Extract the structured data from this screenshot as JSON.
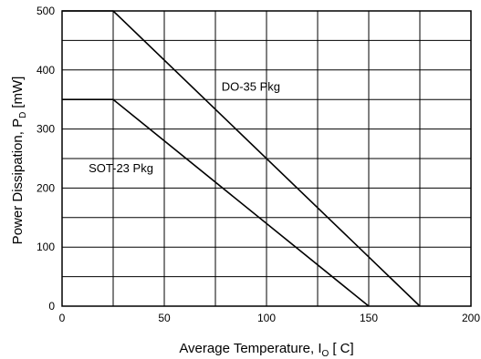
{
  "chart_data": {
    "type": "line",
    "xlabel": "Average Temperature, I",
    "xlabel_sub": "O",
    "xlabel_unit": "[ C]",
    "ylabel": "Power Dissipation, P",
    "ylabel_sub": "D",
    "ylabel_unit": "[mW]",
    "xlim": [
      0,
      200
    ],
    "ylim": [
      0,
      500
    ],
    "x_major_ticks": [
      0,
      50,
      100,
      150,
      200
    ],
    "y_major_ticks": [
      0,
      100,
      200,
      300,
      400,
      500
    ],
    "x_grid": [
      0,
      25,
      50,
      75,
      100,
      125,
      150,
      175,
      200
    ],
    "y_grid": [
      0,
      50,
      100,
      150,
      200,
      250,
      300,
      350,
      400,
      450,
      500
    ],
    "x_tick_labels": [
      "0",
      "50",
      "100",
      "150",
      "200"
    ],
    "y_tick_labels": [
      "0",
      "100",
      "200",
      "300",
      "400",
      "500"
    ],
    "grid": true,
    "series": [
      {
        "name": "DO-35 Pkg",
        "x": [
          0,
          25,
          175
        ],
        "y": [
          500,
          500,
          0
        ]
      },
      {
        "name": "SOT-23 Pkg",
        "x": [
          0,
          25,
          150
        ],
        "y": [
          350,
          350,
          0
        ]
      }
    ],
    "annotations": [
      {
        "text": "DO-35 Pkg",
        "x": 78,
        "y": 365
      },
      {
        "text": "SOT-23 Pkg",
        "x": 13,
        "y": 227
      }
    ]
  }
}
